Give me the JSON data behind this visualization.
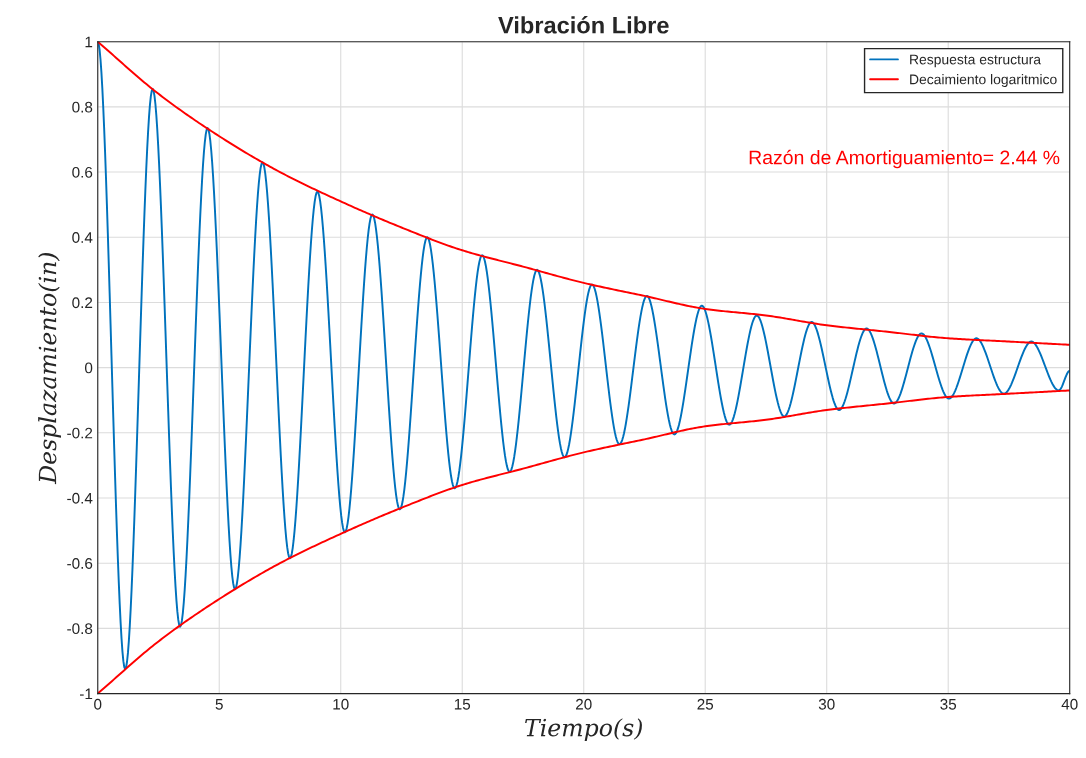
{
  "chart_data": {
    "type": "line",
    "title": "Vibración Libre",
    "xlabel": "Tiempo(s)",
    "ylabel": "Desplazamiento(in)",
    "xlim": [
      0,
      40
    ],
    "xticks": [
      0,
      5,
      10,
      15,
      20,
      25,
      30,
      35,
      40
    ],
    "ylim": [
      -1,
      1
    ],
    "yticks": [
      -1,
      -0.8,
      -0.6,
      -0.4,
      -0.2,
      0,
      0.2,
      0.4,
      0.6,
      0.8,
      1
    ],
    "grid": true,
    "legend": "top right",
    "marker": "none",
    "line_style": "solid",
    "annotations": [
      "Razón de Amortiguamiento= 2.44 %"
    ],
    "series": [
      {
        "name": "Respuesta estructura",
        "color": "#0072bd",
        "x": [
          0,
          1.13,
          2.26,
          3.39,
          4.52,
          5.65,
          6.78,
          7.91,
          9.04,
          10.17,
          11.3,
          12.43,
          13.56,
          14.69,
          15.82,
          16.95,
          18.08,
          19.21,
          20.34,
          21.47,
          22.6,
          23.73,
          24.86,
          25.99,
          27.12,
          28.25,
          29.38,
          30.51,
          31.64,
          32.77,
          33.9,
          35.03,
          36.16,
          37.29,
          38.42,
          39.55,
          40
        ],
        "values": [
          1,
          -0.925,
          0.855,
          -0.795,
          0.735,
          -0.68,
          0.63,
          -0.585,
          0.54,
          -0.505,
          0.47,
          -0.435,
          0.4,
          -0.37,
          0.345,
          -0.32,
          0.3,
          -0.275,
          0.255,
          -0.235,
          0.22,
          -0.205,
          0.19,
          -0.175,
          0.16,
          -0.15,
          0.14,
          -0.13,
          0.12,
          -0.11,
          0.105,
          -0.095,
          0.09,
          -0.08,
          0.08,
          -0.07,
          -0.01
        ]
      },
      {
        "name": "Decaimiento logaritmico",
        "color": "#ff0000",
        "x": [
          0,
          2.5,
          5,
          7.5,
          10,
          12.5,
          15,
          17.5,
          20,
          22.5,
          25,
          27.5,
          30,
          32.5,
          35,
          37.5,
          40
        ],
        "values": [
          1,
          0.84,
          0.71,
          0.6,
          0.51,
          0.43,
          0.36,
          0.31,
          0.26,
          0.22,
          0.18,
          0.16,
          0.13,
          0.11,
          0.09,
          0.08,
          0.07
        ]
      },
      {
        "color": "#ff0000",
        "x": [
          0,
          2.5,
          5,
          7.5,
          10,
          12.5,
          15,
          17.5,
          20,
          22.5,
          25,
          27.5,
          30,
          32.5,
          35,
          37.5,
          40
        ],
        "values": [
          -1,
          -0.84,
          -0.71,
          -0.6,
          -0.51,
          -0.43,
          -0.36,
          -0.31,
          -0.26,
          -0.22,
          -0.18,
          -0.16,
          -0.13,
          -0.11,
          -0.09,
          -0.08,
          -0.07
        ]
      }
    ]
  }
}
